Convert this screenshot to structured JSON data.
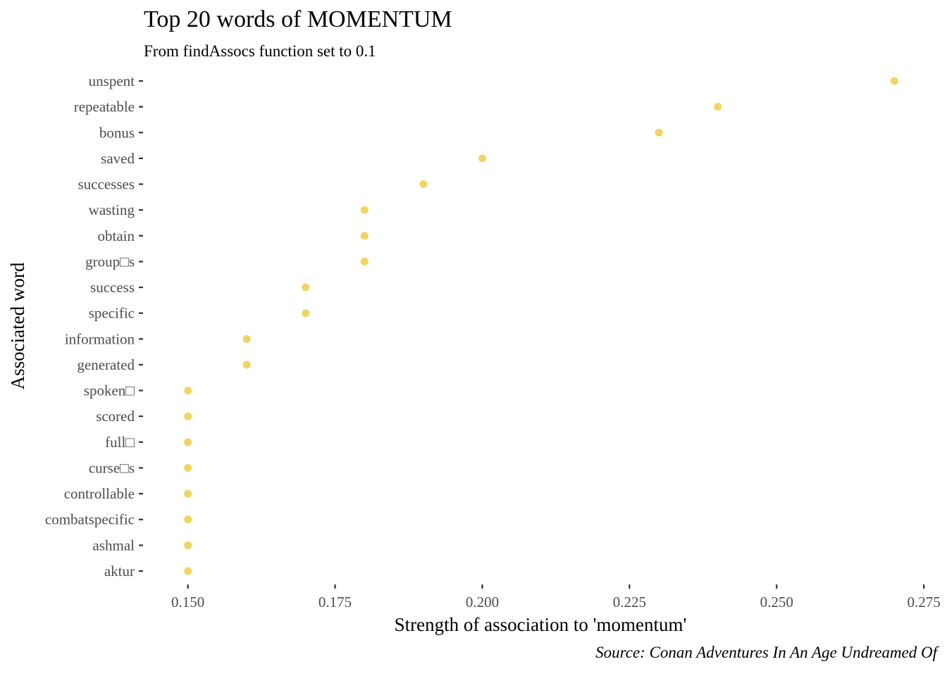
{
  "chart_data": {
    "type": "scatter",
    "title": "Top 20 words of MOMENTUM",
    "subtitle": "From findAssocs function set to 0.1",
    "xlabel": "Strength of association to 'momentum'",
    "ylabel": "Associated word",
    "caption": "Source: Conan Adventures In An Age Undreamed Of",
    "xlim": [
      0.1425,
      0.2775
    ],
    "x_ticks": [
      "0.150",
      "0.175",
      "0.200",
      "0.225",
      "0.250",
      "0.275"
    ],
    "x_tick_values": [
      0.15,
      0.175,
      0.2,
      0.225,
      0.25,
      0.275
    ],
    "grid": false,
    "legend": "none",
    "point_color": "#EBC72F",
    "categories": [
      "unspent",
      "repeatable",
      "bonus",
      "saved",
      "successes",
      "wasting",
      "obtain",
      "group□s",
      "success",
      "specific",
      "information",
      "generated",
      "spoken□",
      "scored",
      "full□",
      "curse□s",
      "controllable",
      "combatspecific",
      "ashmal",
      "aktur"
    ],
    "values": [
      0.27,
      0.24,
      0.23,
      0.2,
      0.19,
      0.18,
      0.18,
      0.18,
      0.17,
      0.17,
      0.16,
      0.16,
      0.15,
      0.15,
      0.15,
      0.15,
      0.15,
      0.15,
      0.15,
      0.15
    ]
  }
}
